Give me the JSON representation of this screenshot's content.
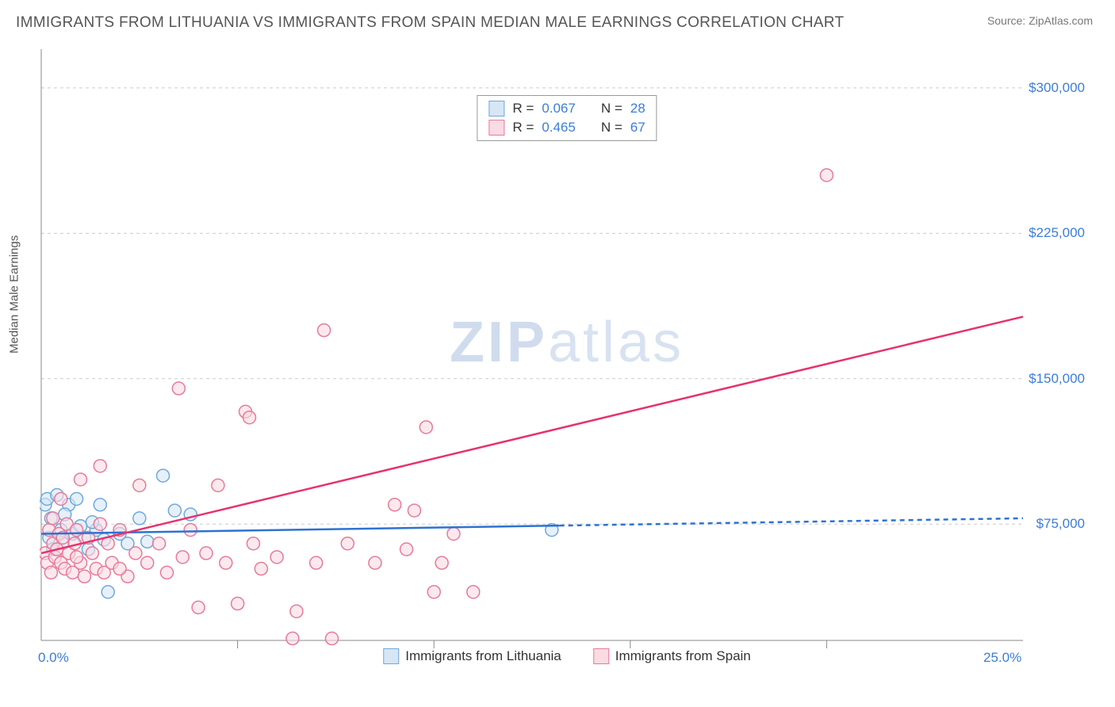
{
  "header": {
    "title": "IMMIGRANTS FROM LITHUANIA VS IMMIGRANTS FROM SPAIN MEDIAN MALE EARNINGS CORRELATION CHART",
    "source_prefix": "Source: ",
    "source_name": "ZipAtlas.com"
  },
  "watermark": {
    "part1": "ZIP",
    "part2": "atlas"
  },
  "chart": {
    "type": "scatter",
    "y_axis_label": "Median Male Earnings",
    "xlim": [
      0,
      25
    ],
    "ylim": [
      15000,
      320000
    ],
    "x_ticks": [
      {
        "value": 0,
        "label": "0.0%"
      },
      {
        "value": 25,
        "label": "25.0%"
      }
    ],
    "y_ticks": [
      {
        "value": 75000,
        "label": "$75,000"
      },
      {
        "value": 150000,
        "label": "$150,000"
      },
      {
        "value": 225000,
        "label": "$225,000"
      },
      {
        "value": 300000,
        "label": "$300,000"
      }
    ],
    "x_rule_positions": [
      5,
      10,
      15,
      20
    ],
    "grid_color": "#cccccc",
    "grid_dash": "4,4",
    "axis_color": "#888888",
    "background_color": "#ffffff",
    "marker_radius": 8,
    "marker_stroke_width": 1.5,
    "line_width": 2.5,
    "series": [
      {
        "name": "Immigrants from Lithuania",
        "fill": "#d6e6f5",
        "stroke": "#6fa8dc",
        "line_color": "#2d72d2",
        "line_solid_to_x": 13.2,
        "line_dash": "6,5",
        "regression": {
          "x1": 0,
          "y1": 70000,
          "x2": 25,
          "y2": 78000
        },
        "r": "0.067",
        "n": "28",
        "points": [
          [
            0.1,
            85000
          ],
          [
            0.15,
            88000
          ],
          [
            0.2,
            68000
          ],
          [
            0.25,
            78000
          ],
          [
            0.3,
            62000
          ],
          [
            0.4,
            90000
          ],
          [
            0.5,
            72000
          ],
          [
            0.55,
            65000
          ],
          [
            0.7,
            85000
          ],
          [
            0.8,
            70000
          ],
          [
            0.9,
            88000
          ],
          [
            1.0,
            74000
          ],
          [
            1.1,
            68000
          ],
          [
            1.2,
            62000
          ],
          [
            1.4,
            72000
          ],
          [
            1.5,
            85000
          ],
          [
            1.6,
            67000
          ],
          [
            2.0,
            70000
          ],
          [
            2.2,
            65000
          ],
          [
            2.5,
            78000
          ],
          [
            2.7,
            66000
          ],
          [
            3.1,
            100000
          ],
          [
            3.4,
            82000
          ],
          [
            3.8,
            80000
          ],
          [
            1.7,
            40000
          ],
          [
            1.3,
            76000
          ],
          [
            0.6,
            80000
          ],
          [
            13.0,
            72000
          ]
        ]
      },
      {
        "name": "Immigrants from Spain",
        "fill": "#fadbe3",
        "stroke": "#e67a9a",
        "line_color": "#e6336b",
        "line_solid_to_x": 25,
        "line_dash": "",
        "regression": {
          "x1": 0,
          "y1": 60000,
          "x2": 25,
          "y2": 182000
        },
        "r": "0.465",
        "n": "67",
        "points": [
          [
            0.1,
            60000
          ],
          [
            0.15,
            55000
          ],
          [
            0.2,
            72000
          ],
          [
            0.25,
            50000
          ],
          [
            0.3,
            65000
          ],
          [
            0.35,
            58000
          ],
          [
            0.4,
            62000
          ],
          [
            0.45,
            70000
          ],
          [
            0.5,
            55000
          ],
          [
            0.55,
            68000
          ],
          [
            0.6,
            52000
          ],
          [
            0.65,
            75000
          ],
          [
            0.7,
            60000
          ],
          [
            0.8,
            50000
          ],
          [
            0.85,
            65000
          ],
          [
            0.9,
            72000
          ],
          [
            1.0,
            55000
          ],
          [
            1.1,
            48000
          ],
          [
            1.2,
            68000
          ],
          [
            1.3,
            60000
          ],
          [
            1.4,
            52000
          ],
          [
            1.5,
            75000
          ],
          [
            1.6,
            50000
          ],
          [
            1.7,
            65000
          ],
          [
            1.8,
            55000
          ],
          [
            2.0,
            72000
          ],
          [
            2.2,
            48000
          ],
          [
            2.4,
            60000
          ],
          [
            2.5,
            95000
          ],
          [
            2.7,
            55000
          ],
          [
            3.0,
            65000
          ],
          [
            3.2,
            50000
          ],
          [
            3.5,
            145000
          ],
          [
            3.6,
            58000
          ],
          [
            3.8,
            72000
          ],
          [
            4.0,
            32000
          ],
          [
            4.2,
            60000
          ],
          [
            4.5,
            95000
          ],
          [
            4.7,
            55000
          ],
          [
            5.0,
            34000
          ],
          [
            5.2,
            133000
          ],
          [
            5.3,
            130000
          ],
          [
            5.4,
            65000
          ],
          [
            5.6,
            52000
          ],
          [
            6.0,
            58000
          ],
          [
            6.4,
            16000
          ],
          [
            6.5,
            30000
          ],
          [
            7.0,
            55000
          ],
          [
            7.2,
            175000
          ],
          [
            7.4,
            16000
          ],
          [
            7.8,
            65000
          ],
          [
            8.5,
            55000
          ],
          [
            9.0,
            85000
          ],
          [
            9.3,
            62000
          ],
          [
            9.5,
            82000
          ],
          [
            9.8,
            125000
          ],
          [
            10.0,
            40000
          ],
          [
            10.2,
            55000
          ],
          [
            10.5,
            70000
          ],
          [
            11.0,
            40000
          ],
          [
            1.0,
            98000
          ],
          [
            0.3,
            78000
          ],
          [
            1.5,
            105000
          ],
          [
            2.0,
            52000
          ],
          [
            0.9,
            58000
          ],
          [
            0.5,
            88000
          ],
          [
            20.0,
            255000
          ]
        ]
      }
    ],
    "stats_legend": {
      "r_label": "R =",
      "n_label": "N ="
    }
  }
}
